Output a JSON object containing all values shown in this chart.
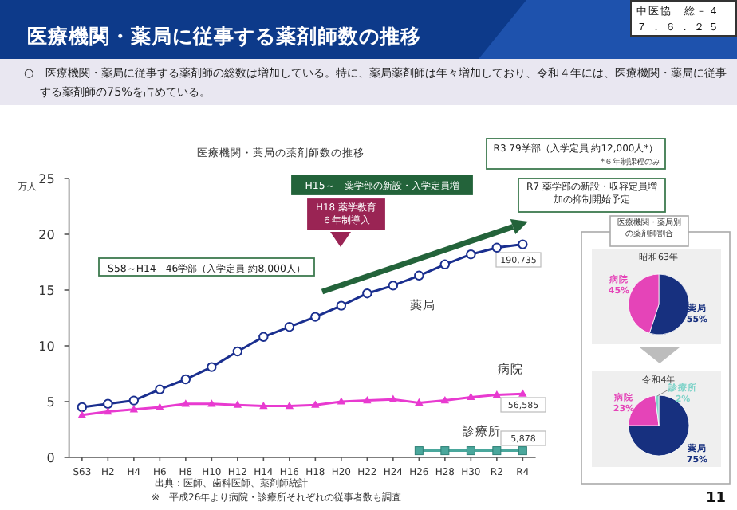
{
  "chart_data": [
    {
      "type": "other",
      "title": "医療機関・薬局に従事する薬剤師数の推移",
      "annotations": [
        "○　医療機関・薬局に従事する薬剤師の総数は増加している。特に、薬局薬剤師は年々増加しており、令和４年には、医療機関・薬局に従事する薬剤師の75%を占めている。",
        "中医協　総－４",
        "７．６．２５",
        "11"
      ]
    },
    {
      "type": "line",
      "title": "医療機関・薬局の薬剤師数の推移",
      "ylabel": "万人",
      "categories": [
        "S63",
        "H2",
        "H4",
        "H6",
        "H8",
        "H10",
        "H12",
        "H14",
        "H16",
        "H18",
        "H20",
        "H22",
        "H24",
        "H26",
        "H28",
        "H30",
        "R2",
        "R4"
      ],
      "ylim": [
        0,
        25
      ],
      "yticks": [
        0,
        5,
        10,
        15,
        20,
        25
      ],
      "grid": false,
      "series": [
        {
          "name": "薬局",
          "color": "#1a2f8f",
          "marker": "circle",
          "values": [
            4.5,
            4.8,
            5.1,
            6.1,
            7.0,
            8.1,
            9.5,
            10.8,
            11.7,
            12.6,
            13.6,
            14.7,
            15.4,
            16.3,
            17.3,
            18.2,
            18.8,
            19.1
          ]
        },
        {
          "name": "病院",
          "color": "#e83ad0",
          "marker": "triangle",
          "values": [
            3.8,
            4.1,
            4.3,
            4.5,
            4.8,
            4.8,
            4.7,
            4.6,
            4.6,
            4.7,
            5.0,
            5.1,
            5.2,
            4.9,
            5.1,
            5.4,
            5.6,
            5.7
          ]
        },
        {
          "name": "診療所",
          "color": "#4aa79c",
          "marker": "square",
          "values": [
            null,
            null,
            null,
            null,
            null,
            null,
            null,
            null,
            null,
            null,
            null,
            null,
            null,
            0.6,
            0.6,
            0.6,
            0.6,
            0.6
          ]
        }
      ],
      "annotations": [
        "S58～H14　46学部（入学定員 約8,000人）",
        "H15～　薬学部の新設・入学定員増",
        "H18 薬学教育６年制導入",
        "R3 79学部（入学定員 約12,000人*）",
        "*６年制課程のみ",
        "R7 薬学部の新設・収容定員増加の抑制開始予定",
        "出典：医師、歯科医師、薬剤師統計",
        "※　平成26年より病院・診療所それぞれの従事者数も調査",
        "190,735",
        "56,585",
        "5,878"
      ]
    },
    {
      "type": "pie",
      "title": "昭和63年",
      "annotations": [
        "医療機関・薬局別の薬剤師割合"
      ],
      "categories": [
        "薬局",
        "病院"
      ],
      "values": [
        55,
        45
      ],
      "colors": [
        "#17307f",
        "#e544b8"
      ],
      "value_labels": [
        "55%",
        "45%"
      ]
    },
    {
      "type": "pie",
      "title": "令和4年",
      "categories": [
        "薬局",
        "病院",
        "診療所"
      ],
      "values": [
        75,
        23,
        2
      ],
      "colors": [
        "#17307f",
        "#e544b8",
        "#7fd3c9"
      ],
      "value_labels": [
        "75%",
        "23%",
        "2%"
      ]
    }
  ]
}
